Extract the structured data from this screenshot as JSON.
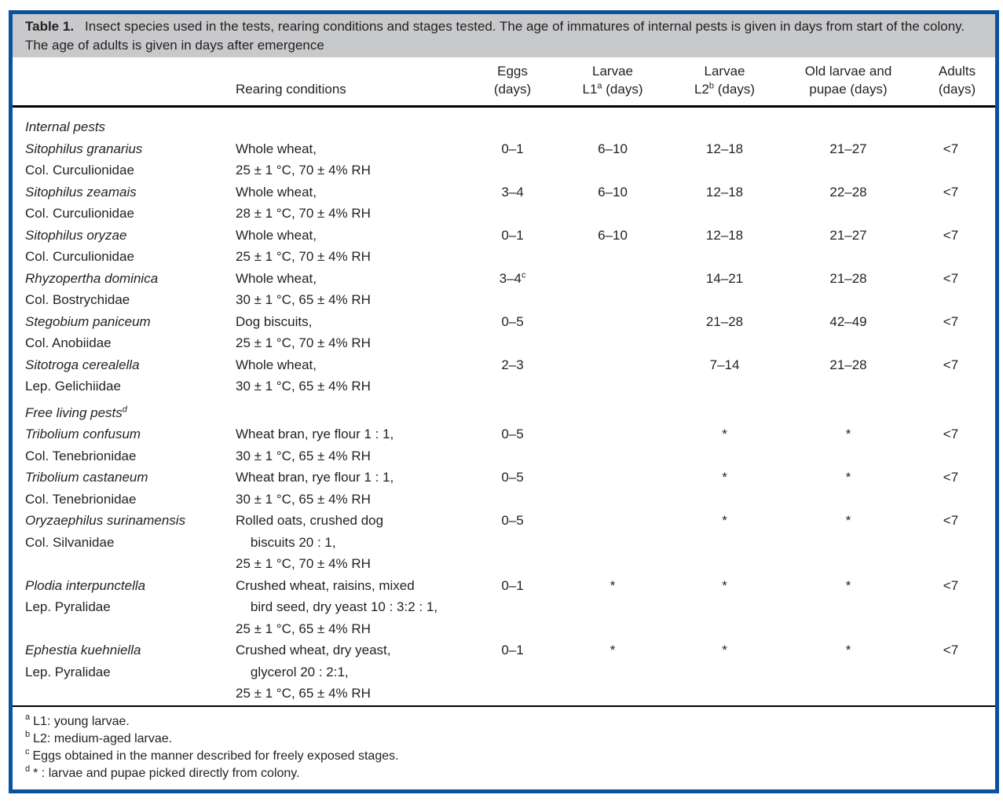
{
  "caption": {
    "label": "Table 1.",
    "text": "Insect species used in the tests, rearing conditions and stages tested. The age of immatures of internal pests is given in days from start of the colony. The age of adults is given in days after emergence"
  },
  "header": {
    "rearing": "Rearing conditions",
    "cols": [
      {
        "line1": "Eggs",
        "pre": "(days)",
        "sup": "",
        "post": ""
      },
      {
        "line1": "Larvae",
        "pre": "L1",
        "sup": "a",
        "post": " (days)"
      },
      {
        "line1": "Larvae",
        "pre": "L2",
        "sup": "b",
        "post": " (days)"
      },
      {
        "line1": "Old larvae and",
        "pre": "pupae (days)",
        "sup": "",
        "post": ""
      },
      {
        "line1": "Adults",
        "pre": "(days)",
        "sup": "",
        "post": ""
      }
    ]
  },
  "sections": [
    {
      "title": "Internal pests",
      "title_sup": "",
      "rows": [
        {
          "species": "Sitophilus granarius",
          "family": "Col. Curculionidae",
          "rearing": "Whole wheat,\n25 ± 1 °C, 70 ± 4% RH",
          "eggs": "0–1",
          "eggs_sup": "",
          "l1": "6–10",
          "l2": "12–18",
          "old": "21–27",
          "adults": "<7"
        },
        {
          "species": "Sitophilus zeamais",
          "family": "Col. Curculionidae",
          "rearing": "Whole wheat,\n28 ± 1 °C, 70 ± 4% RH",
          "eggs": "3–4",
          "eggs_sup": "",
          "l1": "6–10",
          "l2": "12–18",
          "old": "22–28",
          "adults": "<7"
        },
        {
          "species": "Sitophilus oryzae",
          "family": "Col. Curculionidae",
          "rearing": "Whole wheat,\n25 ± 1 °C, 70 ± 4% RH",
          "eggs": "0–1",
          "eggs_sup": "",
          "l1": "6–10",
          "l2": "12–18",
          "old": "21–27",
          "adults": "<7"
        },
        {
          "species": "Rhyzopertha dominica",
          "family": "Col. Bostrychidae",
          "rearing": "Whole wheat,\n30 ± 1 °C, 65 ± 4% RH",
          "eggs": "3–4",
          "eggs_sup": "c",
          "l1": "",
          "l2": "14–21",
          "old": "21–28",
          "adults": "<7"
        },
        {
          "species": "Stegobium paniceum",
          "family": "Col. Anobiidae",
          "rearing": "Dog biscuits,\n25 ± 1 °C, 70 ± 4% RH",
          "eggs": "0–5",
          "eggs_sup": "",
          "l1": "",
          "l2": "21–28",
          "old": "42–49",
          "adults": "<7"
        },
        {
          "species": "Sitotroga cerealella",
          "family": "Lep. Gelichiidae",
          "rearing": "Whole wheat,\n30 ± 1 °C, 65 ± 4% RH",
          "eggs": "2–3",
          "eggs_sup": "",
          "l1": "",
          "l2": "7–14",
          "old": "21–28",
          "adults": "<7"
        }
      ]
    },
    {
      "title": "Free living pests",
      "title_sup": "d",
      "rows": [
        {
          "species": "Tribolium confusum",
          "family": "Col. Tenebrionidae",
          "rearing": "Wheat bran, rye flour 1 : 1,\n30 ± 1 °C, 65 ± 4% RH",
          "eggs": "0–5",
          "eggs_sup": "",
          "l1": "",
          "l2": "*",
          "old": "*",
          "adults": "<7"
        },
        {
          "species": "Tribolium castaneum",
          "family": "Col. Tenebrionidae",
          "rearing": "Wheat bran, rye flour 1 : 1,\n30 ± 1 °C, 65 ± 4% RH",
          "eggs": "0–5",
          "eggs_sup": "",
          "l1": "",
          "l2": "*",
          "old": "*",
          "adults": "<7"
        },
        {
          "species": "Oryzaephilus surinamensis",
          "family": "Col. Silvanidae",
          "rearing": "Rolled oats, crushed dog\n    biscuits 20 : 1,\n25 ± 1 °C, 70 ± 4% RH",
          "eggs": "0–5",
          "eggs_sup": "",
          "l1": "",
          "l2": "*",
          "old": "*",
          "adults": "<7"
        },
        {
          "species": "Plodia interpunctella",
          "family": "Lep. Pyralidae",
          "rearing": "Crushed wheat, raisins, mixed\n    bird seed, dry yeast 10 : 3:2 : 1,\n25 ± 1 °C, 65 ± 4% RH",
          "eggs": "0–1",
          "eggs_sup": "",
          "l1": "*",
          "l2": "*",
          "old": "*",
          "adults": "<7"
        },
        {
          "species": "Ephestia kuehniella",
          "family": "Lep. Pyralidae",
          "rearing": "Crushed wheat, dry yeast,\n    glycerol 20 : 2:1,\n25 ± 1 °C, 65 ± 4% RH",
          "eggs": "0–1",
          "eggs_sup": "",
          "l1": "*",
          "l2": "*",
          "old": "*",
          "adults": "<7"
        }
      ]
    }
  ],
  "footnotes": [
    {
      "sup": "a",
      "text": "L1: young larvae."
    },
    {
      "sup": "b",
      "text": "L2: medium-aged larvae."
    },
    {
      "sup": "c",
      "text": "Eggs obtained in the manner described for freely exposed stages."
    },
    {
      "sup": "d",
      "text": "* : larvae and pupae picked directly from colony."
    }
  ],
  "colors": {
    "frame_blue": "#0a52a0",
    "caption_bg": "#c8c9cb",
    "text": "#231f20",
    "rule_black": "#000000"
  }
}
